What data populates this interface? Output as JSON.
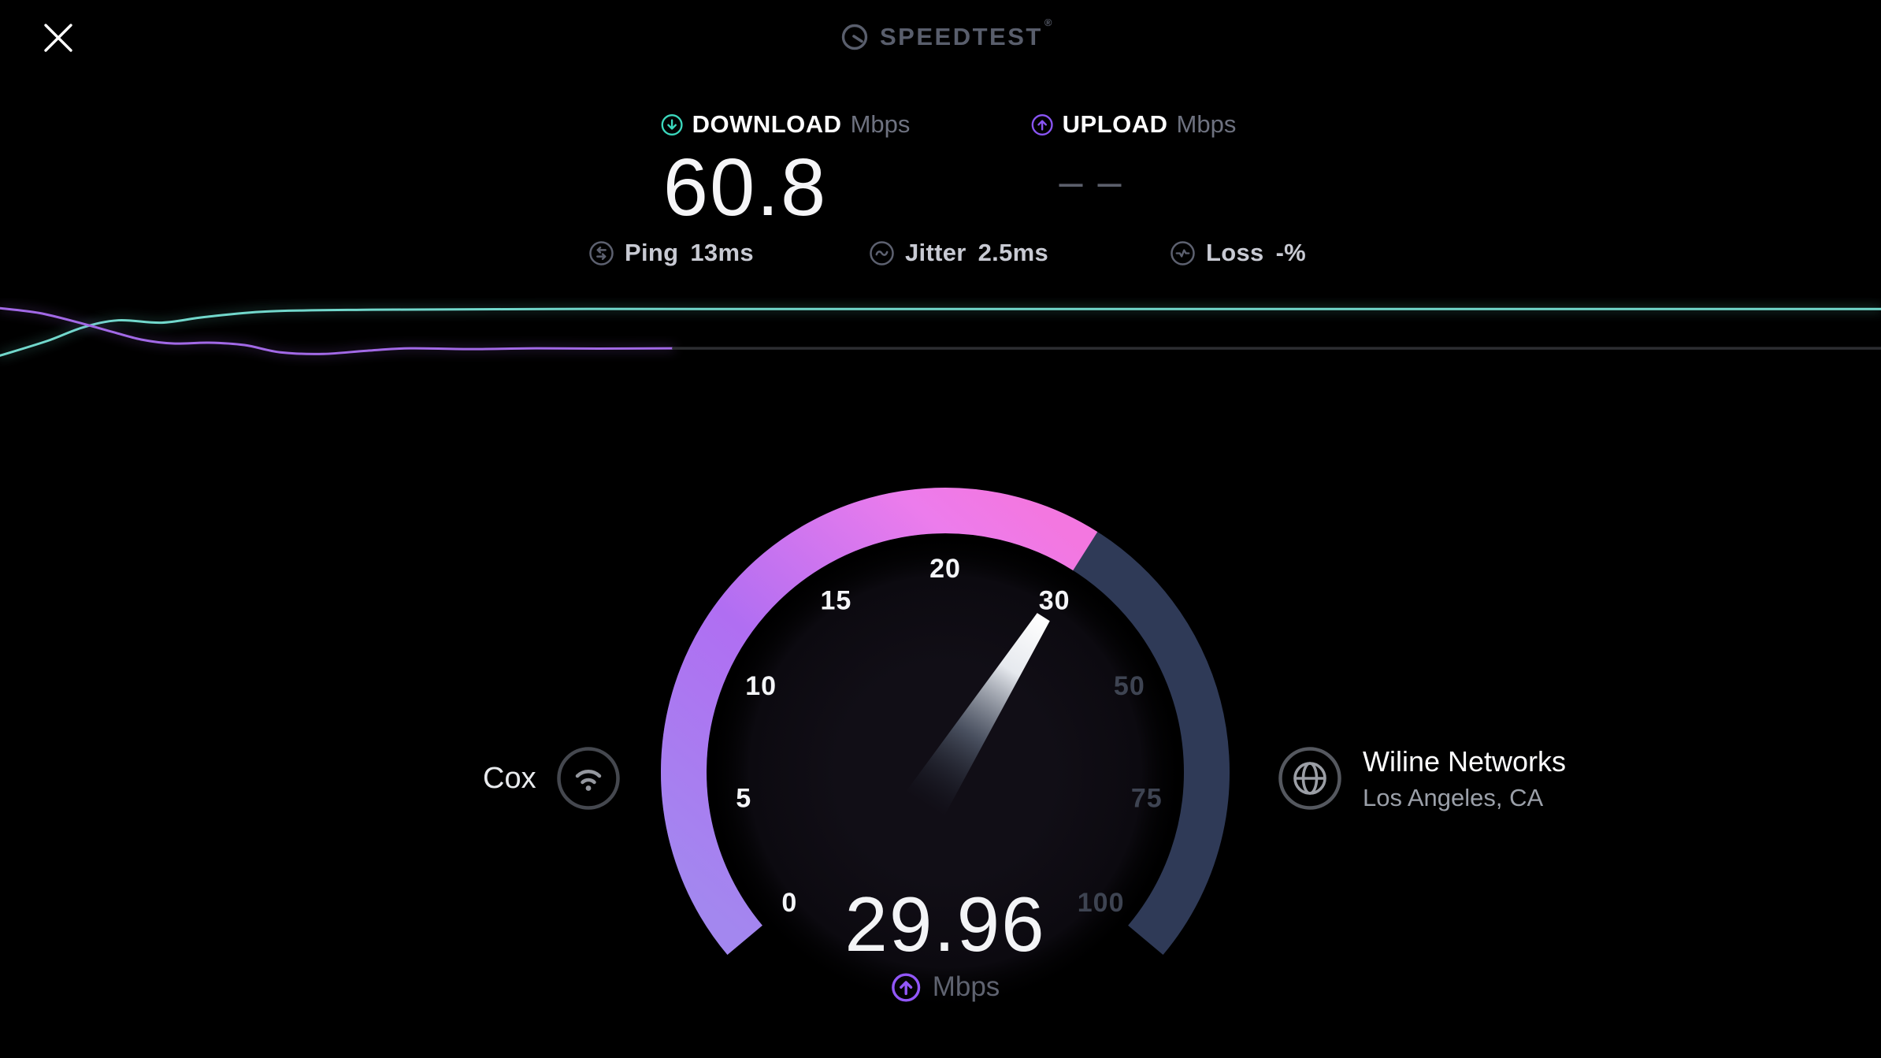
{
  "header": {
    "app_title": "SPEEDTEST",
    "trademark": "®",
    "close_label": "close"
  },
  "stats": {
    "download": {
      "label": "DOWNLOAD",
      "unit": "Mbps",
      "value": "60.8",
      "accent": "#3bd8bd"
    },
    "upload": {
      "label": "UPLOAD",
      "unit": "Mbps",
      "value": "– –",
      "accent": "#8a55f4"
    }
  },
  "metrics": {
    "ping": {
      "label": "Ping",
      "value_display": "13ms"
    },
    "jitter": {
      "label": "Jitter",
      "value_display": "2.5ms"
    },
    "loss": {
      "label": "Loss",
      "value_display": "-%"
    }
  },
  "connection": {
    "isp": "Cox"
  },
  "server": {
    "name": "Wiline Networks",
    "location": "Los Angeles, CA"
  },
  "gauge_display": {
    "value": "29.96",
    "unit": "Mbps"
  },
  "chart_data": [
    {
      "type": "line",
      "title": "speed-over-time sparkline (no axes shown)",
      "legend": "none",
      "grid": false,
      "series": [
        {
          "name": "download",
          "color": "#72d8cc",
          "width": 3,
          "points": [
            [
              0,
              0.655
            ],
            [
              0.025,
              0.49
            ],
            [
              0.044,
              0.336
            ],
            [
              0.063,
              0.255
            ],
            [
              0.086,
              0.282
            ],
            [
              0.109,
              0.218
            ],
            [
              0.142,
              0.155
            ],
            [
              0.193,
              0.136
            ],
            [
              0.293,
              0.127
            ],
            [
              0.503,
              0.127
            ],
            [
              1,
              0.127
            ]
          ]
        },
        {
          "name": "upload",
          "color": "#a269e6",
          "width": 3,
          "points": [
            [
              0,
              0.118
            ],
            [
              0.021,
              0.173
            ],
            [
              0.042,
              0.282
            ],
            [
              0.059,
              0.382
            ],
            [
              0.075,
              0.473
            ],
            [
              0.092,
              0.518
            ],
            [
              0.111,
              0.509
            ],
            [
              0.13,
              0.536
            ],
            [
              0.149,
              0.618
            ],
            [
              0.172,
              0.636
            ],
            [
              0.195,
              0.6
            ],
            [
              0.218,
              0.573
            ],
            [
              0.251,
              0.582
            ],
            [
              0.285,
              0.573
            ],
            [
              0.318,
              0.576
            ],
            [
              0.358,
              0.573
            ]
          ]
        },
        {
          "name": "pending",
          "color": "#2c2d31",
          "width": 3.5,
          "points": [
            [
              0.358,
              0.573
            ],
            [
              1,
              0.573
            ]
          ]
        }
      ]
    },
    {
      "type": "gauge",
      "min": 0,
      "max": 100,
      "value": 29.96,
      "unit": "Mbps",
      "start_angle": -130,
      "end_angle": 130,
      "scale_stops": [
        0,
        5,
        10,
        15,
        20,
        30,
        50,
        75,
        100
      ],
      "tick_labels": [
        {
          "label": "0",
          "active": true
        },
        {
          "label": "5",
          "active": true
        },
        {
          "label": "10",
          "active": true
        },
        {
          "label": "15",
          "active": true
        },
        {
          "label": "20",
          "active": true
        },
        {
          "label": "30",
          "active": true
        },
        {
          "label": "50",
          "active": false
        },
        {
          "label": "75",
          "active": false
        },
        {
          "label": "100",
          "active": false
        }
      ],
      "colors": {
        "track": "#2f3a57",
        "progress_start": "#a387ef",
        "progress_mid": "#b06ef2",
        "progress_end": "#ec7cec",
        "progress_tip": "#f377e0",
        "needle": "#ffffff",
        "label_active": "#f4f5f8",
        "label_inactive": "#3e4452"
      }
    }
  ]
}
